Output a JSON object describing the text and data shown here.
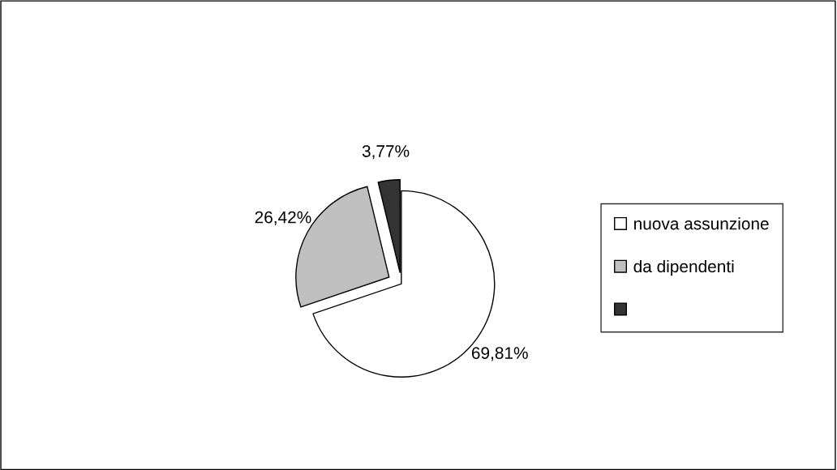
{
  "chart_data": {
    "type": "pie",
    "categories": [
      "nuova assunzione",
      "da dipendenti",
      null
    ],
    "values": [
      69.81,
      26.42,
      3.77
    ],
    "value_labels": [
      "69,81%",
      "26,42%",
      "3,77%"
    ],
    "colors": [
      "#ffffff",
      "#c0c0c0",
      "#333333"
    ],
    "legend": "right"
  }
}
